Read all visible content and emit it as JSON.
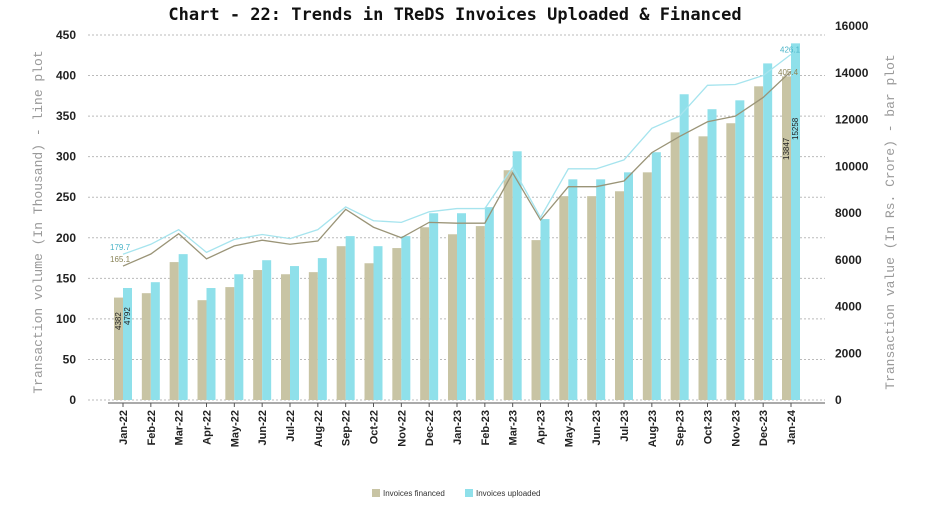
{
  "chart_data": {
    "type": "bar+line",
    "title": "Chart - 22: Trends in TReDS Invoices Uploaded & Financed",
    "ylabel_left": "Transaction volume (In Thousand) - line plot",
    "ylabel_right": "Transaction value (In Rs. Crore) - bar plot",
    "ylim_left": [
      0,
      450
    ],
    "yticks_left": [
      0,
      50,
      100,
      150,
      200,
      250,
      300,
      350,
      400,
      450
    ],
    "ylim_right": [
      0,
      16000
    ],
    "yticks_right": [
      0,
      2000,
      4000,
      6000,
      8000,
      10000,
      12000,
      14000,
      16000
    ],
    "grid": true,
    "legend_position": "bottom",
    "categories": [
      "Jan-22",
      "Feb-22",
      "Mar-22",
      "Apr-22",
      "May-22",
      "Jun-22",
      "Jul-22",
      "Aug-22",
      "Sep-22",
      "Oct-22",
      "Nov-22",
      "Dec-22",
      "Jan-23",
      "Feb-23",
      "Mar-23",
      "Apr-23",
      "May-23",
      "Jun-23",
      "Jul-23",
      "Aug-23",
      "Sep-23",
      "Oct-23",
      "Nov-23",
      "Dec-23",
      "Jan-24"
    ],
    "bar_series": [
      {
        "name": "Invoices financed",
        "color": "#c8c4a4",
        "values": [
          4382,
          4570,
          5900,
          4270,
          4830,
          5560,
          5380,
          5470,
          6580,
          5850,
          6500,
          7390,
          7090,
          7440,
          9830,
          6840,
          8720,
          8720,
          8930,
          9740,
          11450,
          11280,
          11840,
          13420,
          13847
        ]
      },
      {
        "name": "Invoices uploaded",
        "color": "#8fe0ea",
        "values": [
          4792,
          5040,
          6240,
          4790,
          5380,
          5980,
          5730,
          6070,
          7010,
          6580,
          7010,
          7990,
          7990,
          8250,
          10640,
          7740,
          9440,
          9440,
          9740,
          10600,
          13080,
          12440,
          12820,
          14400,
          15258
        ]
      }
    ],
    "line_series": [
      {
        "color": "#9a9477",
        "values": [
          165.1,
          180,
          205,
          174,
          190,
          197,
          192,
          196,
          235,
          213,
          200,
          219,
          218,
          218,
          280,
          222,
          263,
          263,
          270,
          305,
          325,
          343,
          350,
          373,
          405.4
        ]
      },
      {
        "color": "#a6e4ee",
        "values": [
          179.7,
          192,
          210,
          182,
          198,
          204,
          199,
          210,
          238,
          221,
          219,
          232,
          236,
          236,
          287,
          225,
          285,
          285,
          296,
          335,
          350,
          388,
          389,
          400,
          426.1
        ]
      }
    ],
    "data_labels": {
      "line_financed_first": "165.1",
      "line_uploaded_first": "179.7",
      "line_financed_last": "405.4",
      "line_uploaded_last": "426.1",
      "bar_financed_first": "4382",
      "bar_uploaded_first": "4792",
      "bar_financed_last": "13847",
      "bar_uploaded_last": "15258"
    }
  }
}
